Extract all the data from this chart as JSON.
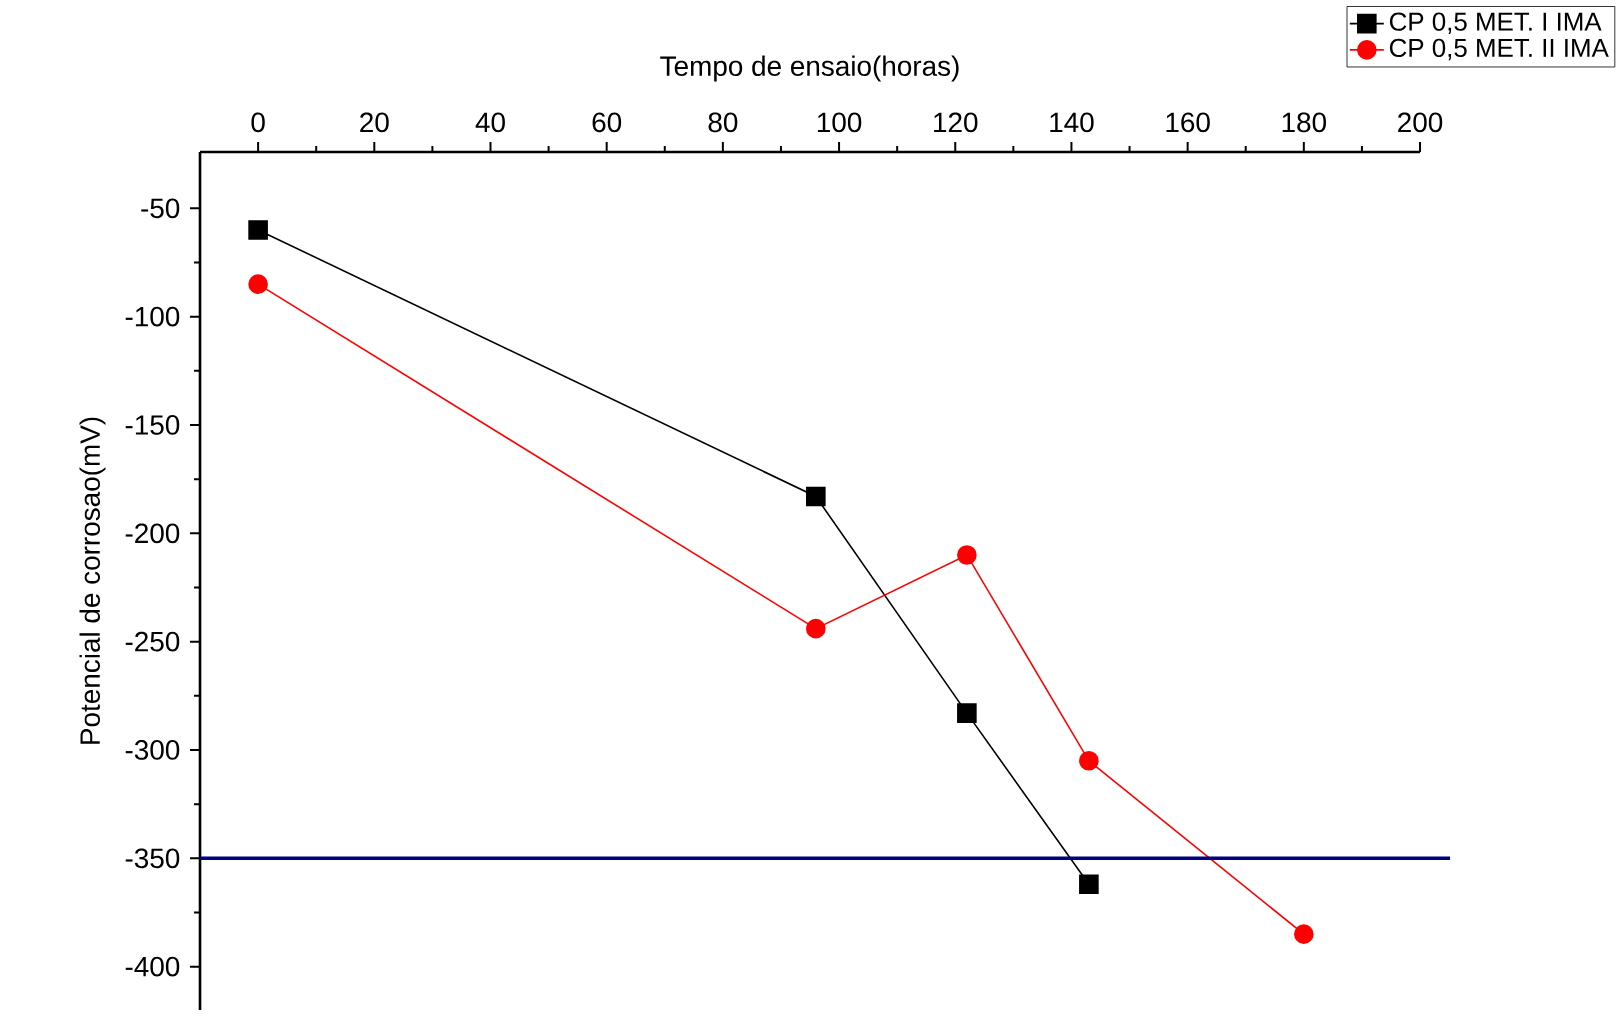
{
  "chart_data": {
    "type": "line",
    "xlabel": "Tempo de ensaio(horas)",
    "ylabel": "Potencial de corrosao(mV)",
    "xlim": [
      -10,
      200
    ],
    "xticks": [
      0,
      20,
      40,
      60,
      80,
      100,
      120,
      140,
      160,
      180,
      200
    ],
    "ylim": [
      -420,
      -24
    ],
    "yticks": [
      -50,
      -100,
      -150,
      -200,
      -250,
      -300,
      -350,
      -400
    ],
    "grid": false,
    "legend": "top right",
    "series": [
      {
        "name": "CP 0,5 MET. I IMA",
        "color": "#000000",
        "marker": "square",
        "x": [
          0,
          96,
          122,
          143
        ],
        "values": [
          -60,
          -183,
          -283,
          -362
        ]
      },
      {
        "name": "CP 0,5 MET. II IMA",
        "color": "#ff0000",
        "marker": "circle",
        "x": [
          0,
          96,
          122,
          143,
          180
        ],
        "values": [
          -85,
          -244,
          -210,
          -305,
          -385
        ]
      }
    ],
    "ref_lines": [
      {
        "axis": "y",
        "value": -350,
        "color": "#000080"
      }
    ]
  }
}
